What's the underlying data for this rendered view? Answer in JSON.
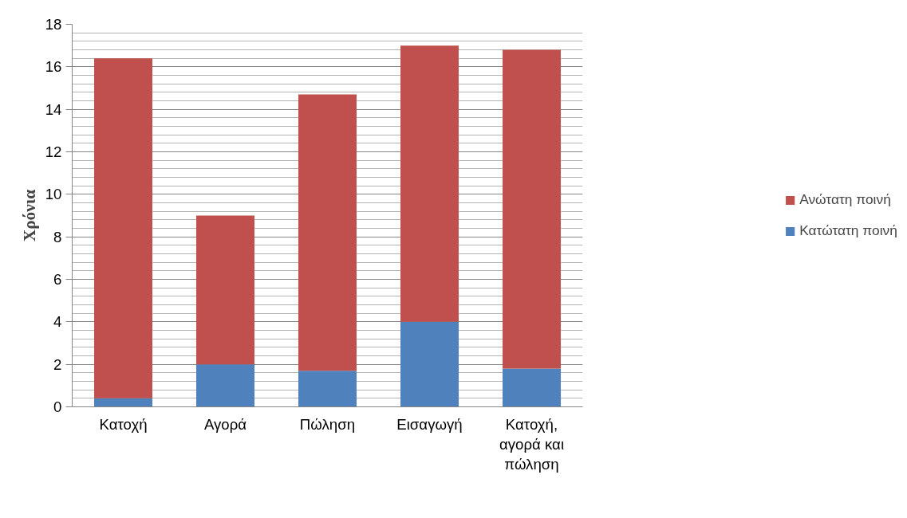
{
  "chart_data": {
    "type": "bar",
    "stacked": true,
    "ylabel": "Χρόνια",
    "categories": [
      "Κατοχή",
      "Αγορά",
      "Πώληση",
      "Εισαγωγή",
      "Κατοχή, αγορά και πώληση"
    ],
    "series": [
      {
        "name": "Κατώτατη ποινή",
        "color": "#4f81bd",
        "values": [
          0.4,
          2,
          1.7,
          4,
          1.8
        ]
      },
      {
        "name": "Ανώτατη ποινή",
        "color": "#c0504d",
        "values": [
          16.0,
          7,
          13.0,
          13,
          15.0
        ]
      }
    ],
    "ylim": [
      0,
      18
    ],
    "yticks": [
      0,
      2,
      4,
      6,
      8,
      10,
      12,
      14,
      16,
      18
    ],
    "grid": "y",
    "legend": "right"
  }
}
